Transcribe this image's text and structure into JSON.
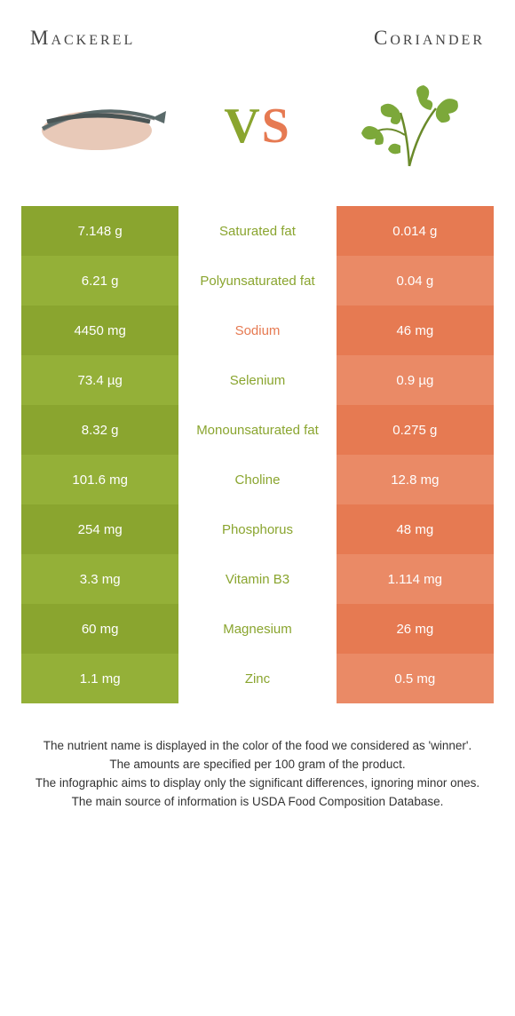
{
  "header": {
    "left_title": "Mackerel",
    "right_title": "Coriander",
    "vs_v": "V",
    "vs_s": "S"
  },
  "colors": {
    "green": "#8aa52f",
    "green_alt": "#94b038",
    "orange": "#e67a52",
    "orange_alt": "#ea8a66",
    "white": "#ffffff",
    "text": "#333333"
  },
  "rows": [
    {
      "left": "7.148 g",
      "label": "Saturated fat",
      "right": "0.014 g",
      "winner": "left"
    },
    {
      "left": "6.21 g",
      "label": "Polyunsaturated fat",
      "right": "0.04 g",
      "winner": "left"
    },
    {
      "left": "4450 mg",
      "label": "Sodium",
      "right": "46 mg",
      "winner": "right"
    },
    {
      "left": "73.4 µg",
      "label": "Selenium",
      "right": "0.9 µg",
      "winner": "left"
    },
    {
      "left": "8.32 g",
      "label": "Monounsaturated fat",
      "right": "0.275 g",
      "winner": "left"
    },
    {
      "left": "101.6 mg",
      "label": "Choline",
      "right": "12.8 mg",
      "winner": "left"
    },
    {
      "left": "254 mg",
      "label": "Phosphorus",
      "right": "48 mg",
      "winner": "left"
    },
    {
      "left": "3.3 mg",
      "label": "Vitamin B3",
      "right": "1.114 mg",
      "winner": "left"
    },
    {
      "left": "60 mg",
      "label": "Magnesium",
      "right": "26 mg",
      "winner": "left"
    },
    {
      "left": "1.1 mg",
      "label": "Zinc",
      "right": "0.5 mg",
      "winner": "left"
    }
  ],
  "footnotes": {
    "line1": "The nutrient name is displayed in the color of the food we considered as 'winner'.",
    "line2": "The amounts are specified per 100 gram of the product.",
    "line3": "The infographic aims to display only the significant differences, ignoring minor ones.",
    "line4": "The main source of information is USDA Food Composition Database."
  },
  "icons": {
    "fish": "mackerel-image",
    "herb": "coriander-image"
  }
}
